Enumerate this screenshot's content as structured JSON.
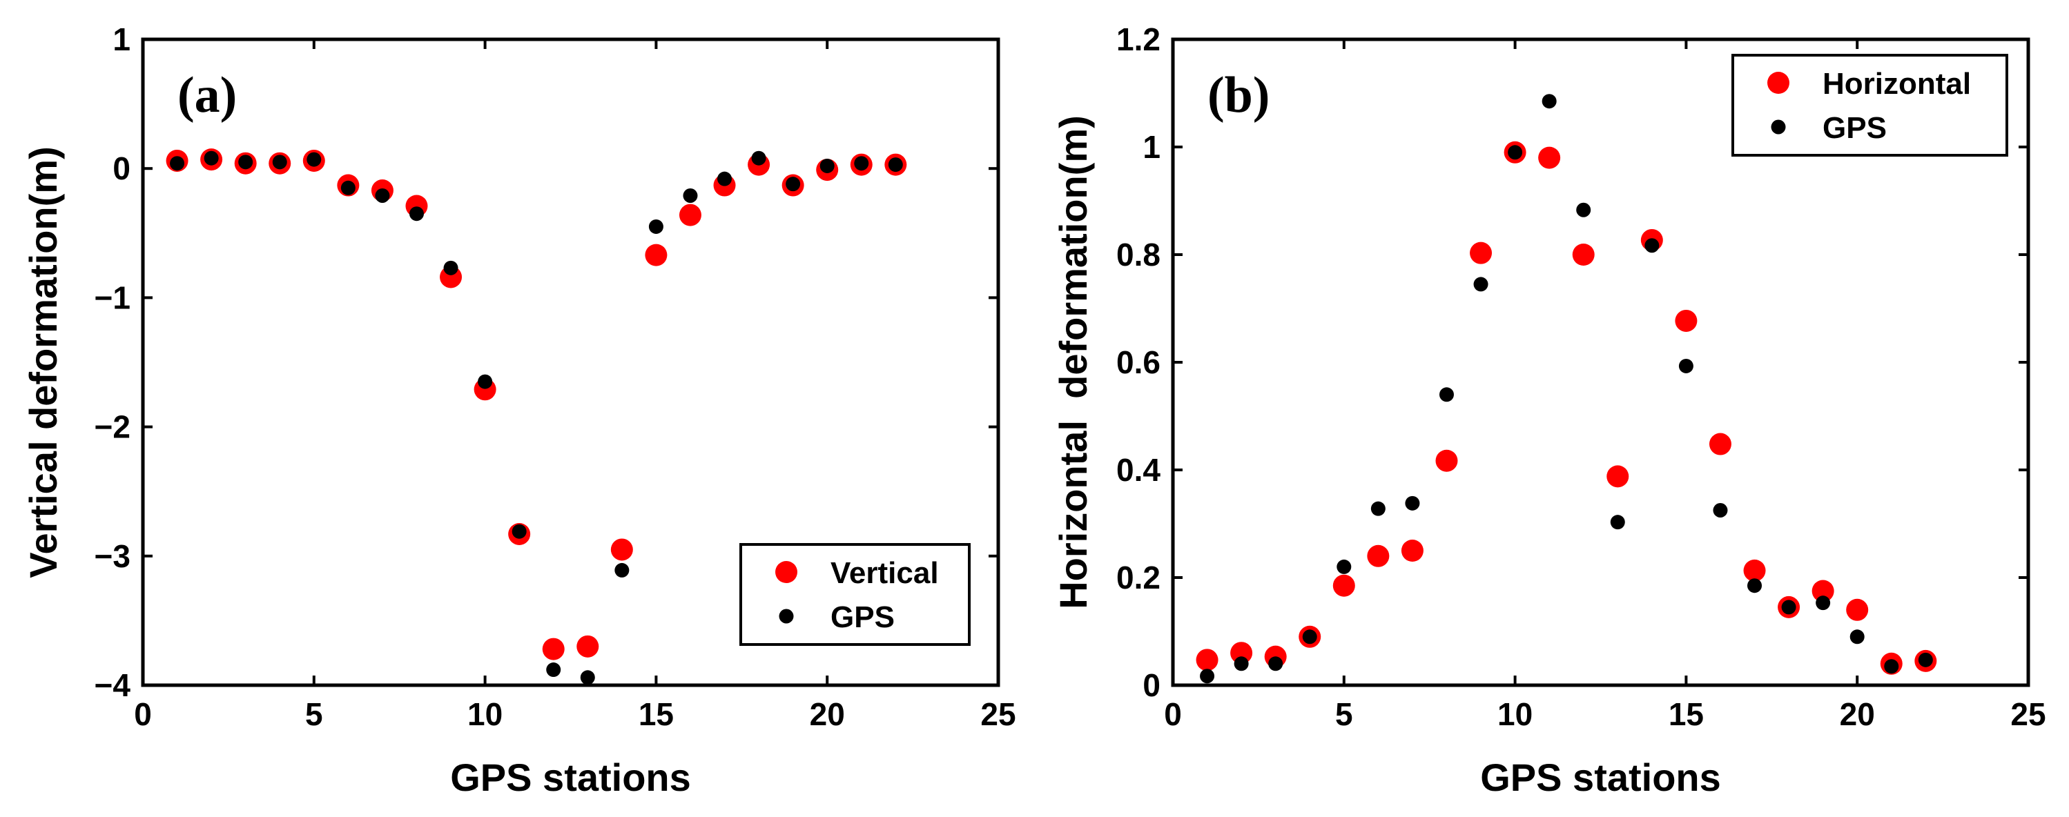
{
  "chart_data": [
    {
      "type": "scatter",
      "panel_label": "(a)",
      "xlabel": "GPS stations",
      "ylabel": "Vertical deformation(m)",
      "xlim": [
        0,
        25
      ],
      "ylim": [
        -4,
        1
      ],
      "xticks": [
        0,
        5,
        10,
        15,
        20,
        25
      ],
      "xtick_labels": [
        "0",
        "5",
        "10",
        "15",
        "20",
        "25"
      ],
      "yticks": [
        -4,
        -3,
        -2,
        -1,
        0,
        1
      ],
      "ytick_labels": [
        "−4",
        "−3",
        "−2",
        "−1",
        "0",
        "1"
      ],
      "legend_position": "bottom-right",
      "grid": false,
      "x": [
        1,
        2,
        3,
        4,
        5,
        6,
        7,
        8,
        9,
        10,
        11,
        12,
        13,
        14,
        15,
        16,
        17,
        18,
        19,
        20,
        21,
        22
      ],
      "series": [
        {
          "name": "Vertical",
          "color": "#ff0000",
          "marker": "large-circle",
          "values": [
            0.06,
            0.07,
            0.04,
            0.04,
            0.06,
            -0.13,
            -0.17,
            -0.29,
            -0.84,
            -1.71,
            -2.83,
            -3.72,
            -3.7,
            -2.95,
            -0.67,
            -0.36,
            -0.13,
            0.03,
            -0.13,
            -0.01,
            0.03,
            0.03
          ]
        },
        {
          "name": "GPS",
          "color": "#000000",
          "marker": "small-circle",
          "values": [
            0.04,
            0.08,
            0.05,
            0.05,
            0.07,
            -0.15,
            -0.21,
            -0.35,
            -0.77,
            -1.65,
            -2.81,
            -3.88,
            -3.94,
            -3.11,
            -0.45,
            -0.21,
            -0.08,
            0.08,
            -0.12,
            0.02,
            0.04,
            0.03
          ]
        }
      ]
    },
    {
      "type": "scatter",
      "panel_label": "(b)",
      "xlabel": "GPS stations",
      "ylabel": "Horizontal  deformation(m)",
      "xlim": [
        0,
        25
      ],
      "ylim": [
        0,
        1.2
      ],
      "xticks": [
        0,
        5,
        10,
        15,
        20,
        25
      ],
      "xtick_labels": [
        "0",
        "5",
        "10",
        "15",
        "20",
        "25"
      ],
      "yticks": [
        0,
        0.2,
        0.4,
        0.6,
        0.8,
        1,
        1.2
      ],
      "ytick_labels": [
        "0",
        "0.2",
        "0.4",
        "0.6",
        "0.8",
        "1",
        "1.2"
      ],
      "legend_position": "top-right",
      "grid": false,
      "x": [
        1,
        2,
        3,
        4,
        5,
        6,
        7,
        8,
        9,
        10,
        11,
        12,
        13,
        14,
        15,
        16,
        17,
        18,
        19,
        20,
        21,
        22
      ],
      "series": [
        {
          "name": "Horizontal",
          "color": "#ff0000",
          "marker": "large-circle",
          "values": [
            0.047,
            0.06,
            0.053,
            0.09,
            0.185,
            0.24,
            0.25,
            0.417,
            0.803,
            0.99,
            0.98,
            0.8,
            0.388,
            0.827,
            0.677,
            0.448,
            0.213,
            0.145,
            0.175,
            0.14,
            0.04,
            0.045
          ]
        },
        {
          "name": "GPS",
          "color": "#000000",
          "marker": "small-circle",
          "values": [
            0.017,
            0.04,
            0.04,
            0.09,
            0.22,
            0.328,
            0.338,
            0.54,
            0.745,
            0.99,
            1.085,
            0.883,
            0.303,
            0.817,
            0.593,
            0.325,
            0.185,
            0.145,
            0.153,
            0.09,
            0.035,
            0.047
          ]
        }
      ]
    }
  ]
}
